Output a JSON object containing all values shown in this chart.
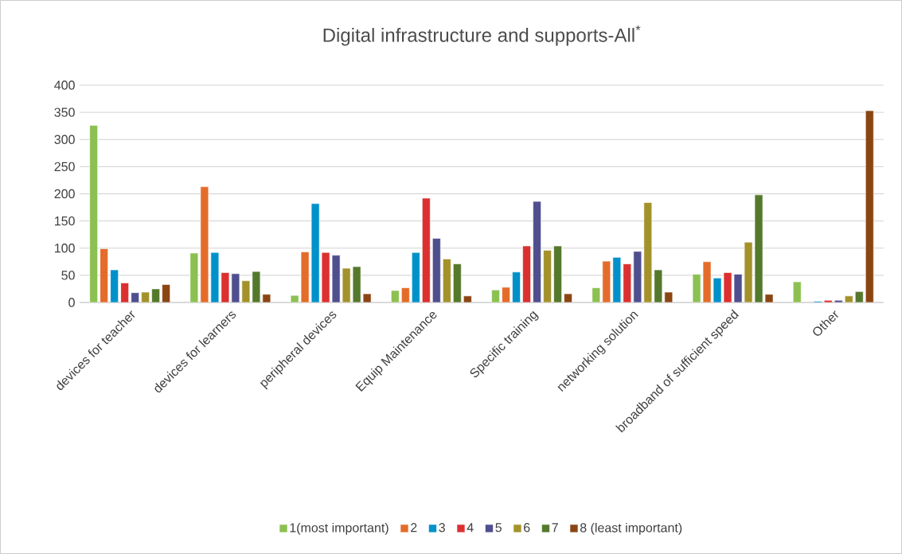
{
  "chart_data": {
    "type": "bar",
    "title": "Digital infrastructure and supports-All$^{*}$",
    "categories": [
      "devices for teacher",
      "devices for learners",
      "peripheral devices",
      "Equip Maintenance",
      "Specific training",
      "networking solution",
      "broadband of sufficient speed",
      "Other"
    ],
    "series": [
      {
        "name": "1(most important)",
        "color": "#8cc152",
        "values": [
          326,
          91,
          13,
          22,
          23,
          27,
          52,
          38
        ]
      },
      {
        "name": "2",
        "color": "#e46c2a",
        "values": [
          99,
          213,
          93,
          27,
          28,
          76,
          75,
          null
        ]
      },
      {
        "name": "3",
        "color": "#0091ca",
        "values": [
          60,
          92,
          182,
          92,
          56,
          83,
          45,
          2
        ]
      },
      {
        "name": "4",
        "color": "#dc3030",
        "values": [
          36,
          55,
          92,
          192,
          104,
          71,
          55,
          4
        ]
      },
      {
        "name": "5",
        "color": "#4f4f8f",
        "values": [
          18,
          53,
          87,
          118,
          186,
          94,
          52,
          4
        ]
      },
      {
        "name": "6",
        "color": "#a3922b",
        "values": [
          19,
          40,
          63,
          80,
          96,
          184,
          111,
          12
        ]
      },
      {
        "name": "7",
        "color": "#55792c",
        "values": [
          25,
          57,
          66,
          71,
          104,
          60,
          198,
          20
        ]
      },
      {
        "name": "8 (least important)",
        "color": "#8b4513",
        "values": [
          33,
          15,
          16,
          12,
          16,
          19,
          15,
          353
        ]
      }
    ],
    "ylim": [
      0,
      400
    ],
    "yticks": [
      0,
      50,
      100,
      150,
      200,
      250,
      300,
      350,
      400
    ],
    "grid": "y",
    "legend": "bottom"
  }
}
